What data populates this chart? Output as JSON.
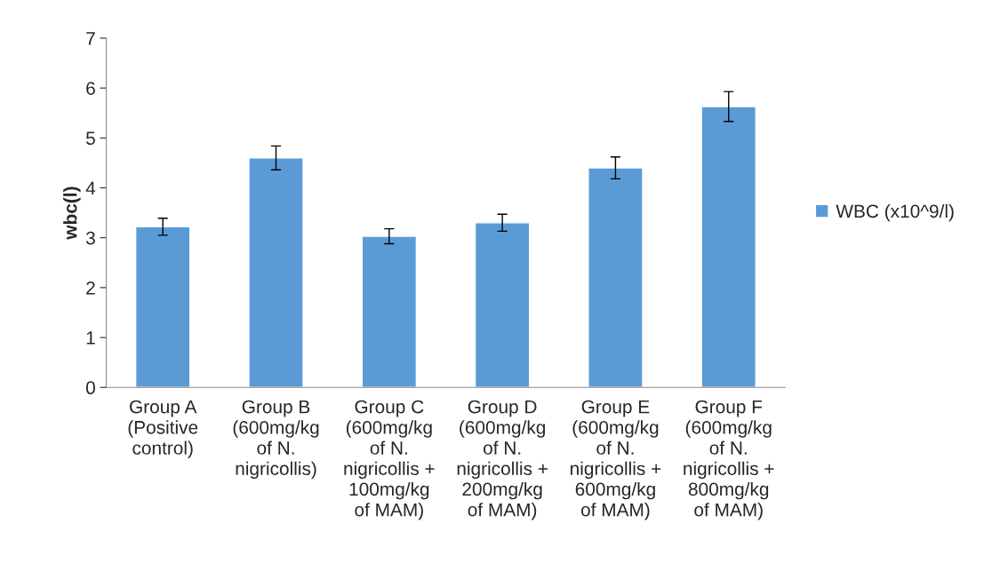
{
  "chart_data": {
    "type": "bar",
    "ylabel": "wbc(l)",
    "categories": [
      "Group A\n(Positive\ncontrol)",
      "Group B\n(600mg/kg\nof N.\nnigricollis)",
      "Group C\n(600mg/kg\nof N.\nnigricollis +\n100mg/kg\nof MAM)",
      "Group D\n(600mg/kg\nof N.\nnigricollis +\n200mg/kg\nof MAM)",
      "Group E\n(600mg/kg\nof N.\nnigricollis +\n600mg/kg\nof MAM)",
      "Group F\n(600mg/kg\nof N.\nnigricollis +\n800mg/kg\nof MAM)"
    ],
    "series": [
      {
        "name": "WBC (x10^9/l)",
        "color": "#5b9bd5",
        "values": [
          3.22,
          4.6,
          3.03,
          3.3,
          4.4,
          5.63
        ],
        "errors": [
          0.17,
          0.24,
          0.15,
          0.17,
          0.22,
          0.3
        ]
      }
    ],
    "ylim": [
      0,
      7
    ],
    "yticks": [
      0,
      1,
      2,
      3,
      4,
      5,
      6,
      7
    ],
    "grid": false,
    "legend": "right"
  }
}
